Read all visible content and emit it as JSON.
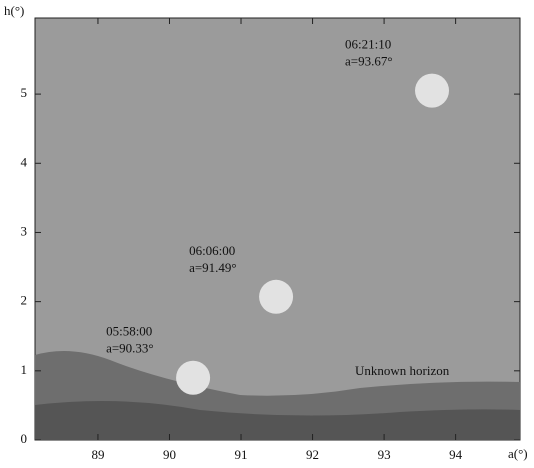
{
  "chart_data": {
    "type": "scatter",
    "x_label": "a(°)",
    "y_label": "h(°)",
    "annotation": "Unknown horizon",
    "xlim": [
      88.12,
      94.9
    ],
    "ylim": [
      0,
      6.1
    ],
    "xticks": [
      89,
      90,
      91,
      92,
      93,
      94
    ],
    "yticks": [
      0,
      1,
      2,
      3,
      4,
      5
    ],
    "series": [
      {
        "color": "#e2e2e2",
        "x": [
          90.33,
          91.49,
          93.67
        ],
        "values": [
          0.9,
          2.07,
          5.05
        ],
        "times": [
          "05:58:00",
          "06:06:00",
          "06:21:10"
        ],
        "x_labels": [
          "a=90.33°",
          "a=91.49°",
          "a=93.67°"
        ]
      }
    ]
  }
}
